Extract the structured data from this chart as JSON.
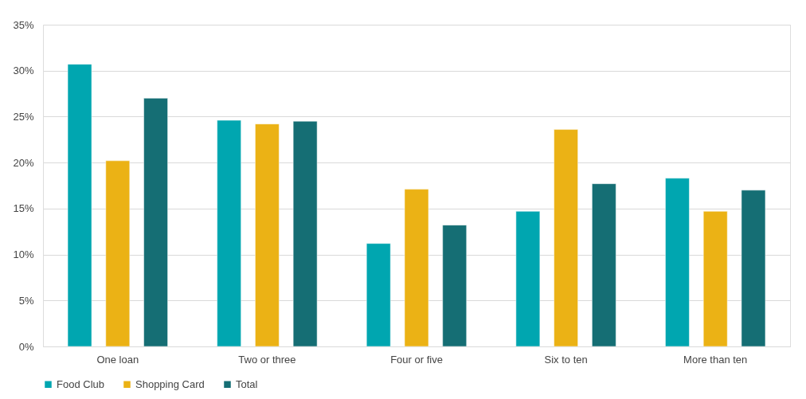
{
  "chart_data": {
    "type": "bar",
    "categories": [
      "One loan",
      "Two or three",
      "Four or five",
      "Six to ten",
      "More than ten"
    ],
    "series": [
      {
        "name": "Food Club",
        "color": "#00a6b0",
        "values": [
          30.7,
          24.6,
          11.2,
          14.7,
          18.3
        ]
      },
      {
        "name": "Shopping Card",
        "color": "#ebb215",
        "values": [
          20.2,
          24.2,
          17.1,
          23.6,
          14.7
        ]
      },
      {
        "name": "Total",
        "color": "#156e74",
        "values": [
          27.0,
          24.5,
          13.2,
          17.7,
          17.0
        ]
      }
    ],
    "ylim": [
      0,
      35
    ],
    "yticks": [
      {
        "value": 0,
        "label": "0%"
      },
      {
        "value": 5,
        "label": "5%"
      },
      {
        "value": 10,
        "label": "10%"
      },
      {
        "value": 15,
        "label": "15%"
      },
      {
        "value": 20,
        "label": "20%"
      },
      {
        "value": 25,
        "label": "25%"
      },
      {
        "value": 30,
        "label": "30%"
      },
      {
        "value": 35,
        "label": "35%"
      }
    ],
    "grid": "y",
    "legend": "bottom"
  }
}
